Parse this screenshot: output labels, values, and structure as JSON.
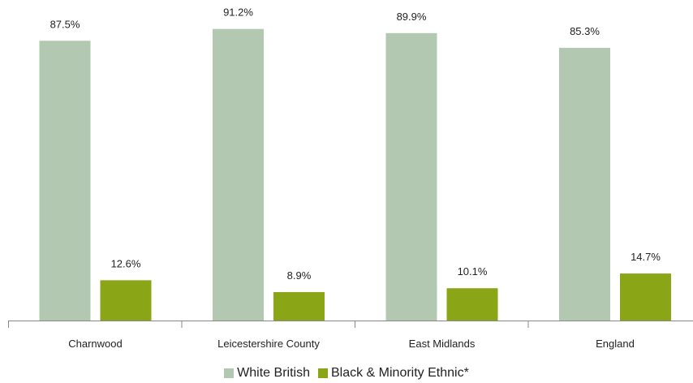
{
  "chart_data": {
    "type": "bar",
    "title": "",
    "xlabel": "",
    "ylabel": "",
    "ylim": [
      0,
      100
    ],
    "grid": false,
    "legend_position": "bottom",
    "categories": [
      "Charnwood",
      "Leicestershire County",
      "East Midlands",
      "England"
    ],
    "series": [
      {
        "name": "White British",
        "color": "#b3c8b0",
        "values": [
          87.5,
          91.2,
          89.9,
          85.3
        ],
        "labels": [
          "87.5%",
          "91.2%",
          "89.9%",
          "85.3%"
        ]
      },
      {
        "name": "Black & Minority Ethnic*",
        "color": "#8aa617",
        "values": [
          12.6,
          8.9,
          10.1,
          14.7
        ],
        "labels": [
          "12.6%",
          "8.9%",
          "10.1%",
          "14.7%"
        ]
      }
    ]
  }
}
